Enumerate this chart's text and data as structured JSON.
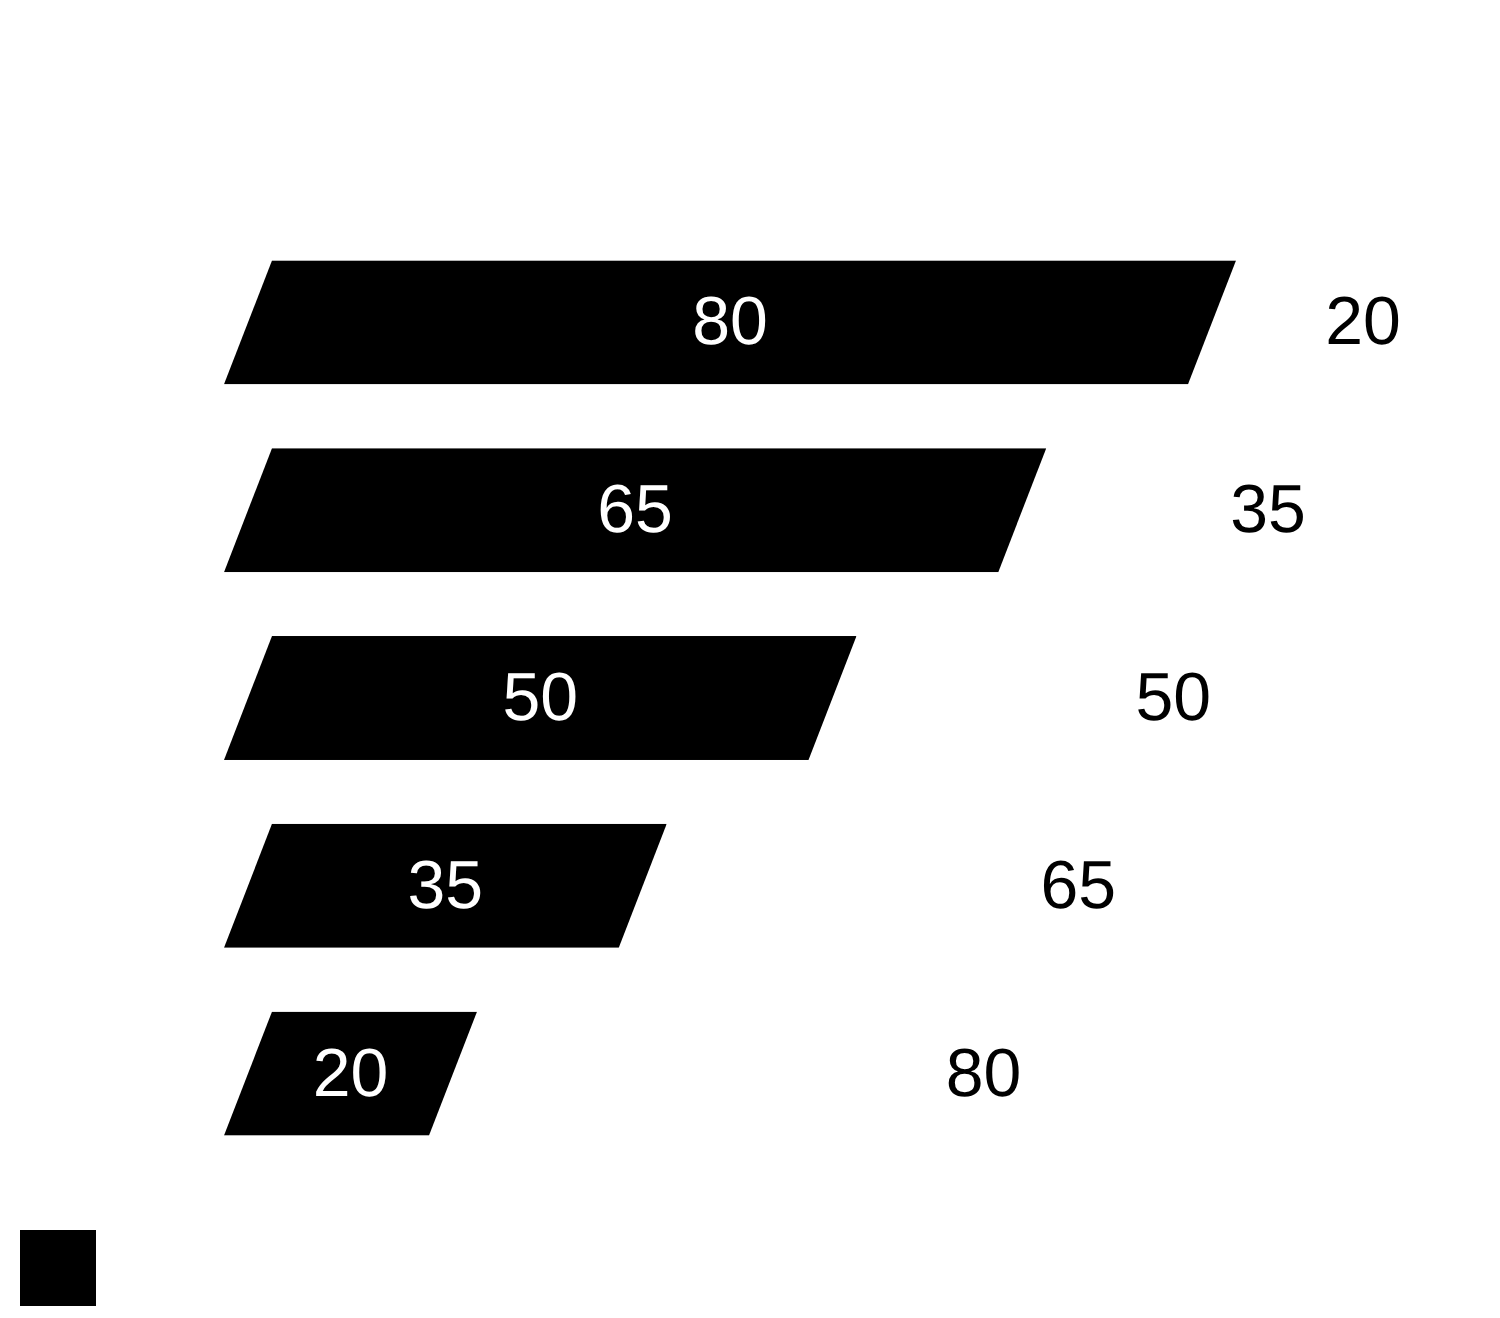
{
  "chart_data": {
    "type": "bar",
    "orientation": "horizontal",
    "data_labels": true,
    "categories": [
      null,
      null,
      null,
      null,
      null
    ],
    "series": [
      {
        "color": "#000000",
        "values": [
          80,
          65,
          50,
          35,
          20
        ]
      }
    ],
    "annotations": [
      "20",
      "35",
      "50",
      "65",
      "80"
    ]
  }
}
